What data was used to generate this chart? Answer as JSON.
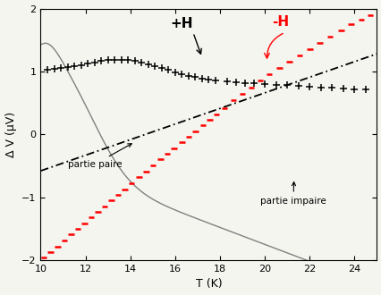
{
  "xlim": [
    10,
    25
  ],
  "ylim": [
    -2,
    2
  ],
  "xlabel": "T (K)",
  "ylabel": "Δ V (μV)",
  "xticks": [
    10,
    12,
    14,
    16,
    18,
    20,
    22,
    24
  ],
  "yticks": [
    -2,
    -1,
    0,
    1,
    2
  ],
  "bg_color": "#f5f5f0",
  "plus_H_label": "+H",
  "minus_H_label": "-H",
  "partie_paire_label": "partie paire",
  "partie_impaire_label": "partie impaire",
  "plusH_T": [
    10.3,
    10.6,
    10.9,
    11.2,
    11.5,
    11.8,
    12.1,
    12.4,
    12.7,
    13.0,
    13.3,
    13.6,
    13.9,
    14.2,
    14.5,
    14.8,
    15.1,
    15.4,
    15.7,
    16.0,
    16.3,
    16.6,
    16.9,
    17.2,
    17.5,
    17.8,
    18.3,
    18.7,
    19.1,
    19.5,
    20.0,
    20.5,
    21.0,
    21.5,
    22.0,
    22.5,
    23.0,
    23.5,
    24.0,
    24.5
  ],
  "minusH_T": [
    10.15,
    10.45,
    10.75,
    11.05,
    11.35,
    11.65,
    11.95,
    12.25,
    12.55,
    12.85,
    13.15,
    13.45,
    13.75,
    14.05,
    14.4,
    14.7,
    15.0,
    15.35,
    15.65,
    15.95,
    16.3,
    16.6,
    16.9,
    17.25,
    17.55,
    17.85,
    18.2,
    18.6,
    19.0,
    19.4,
    19.8,
    20.2,
    20.65,
    21.1,
    21.55,
    22.0,
    22.45,
    22.9,
    23.4,
    23.85,
    24.3,
    24.7
  ],
  "minusH_V": [
    -1.95,
    -1.87,
    -1.78,
    -1.68,
    -1.59,
    -1.5,
    -1.41,
    -1.32,
    -1.23,
    -1.14,
    -1.05,
    -0.96,
    -0.87,
    -0.78,
    -0.68,
    -0.59,
    -0.5,
    -0.4,
    -0.31,
    -0.22,
    -0.13,
    -0.04,
    0.05,
    0.14,
    0.23,
    0.32,
    0.41,
    0.55,
    0.65,
    0.75,
    0.85,
    0.95,
    1.05,
    1.15,
    1.25,
    1.35,
    1.45,
    1.55,
    1.65,
    1.75,
    1.83,
    1.9
  ]
}
